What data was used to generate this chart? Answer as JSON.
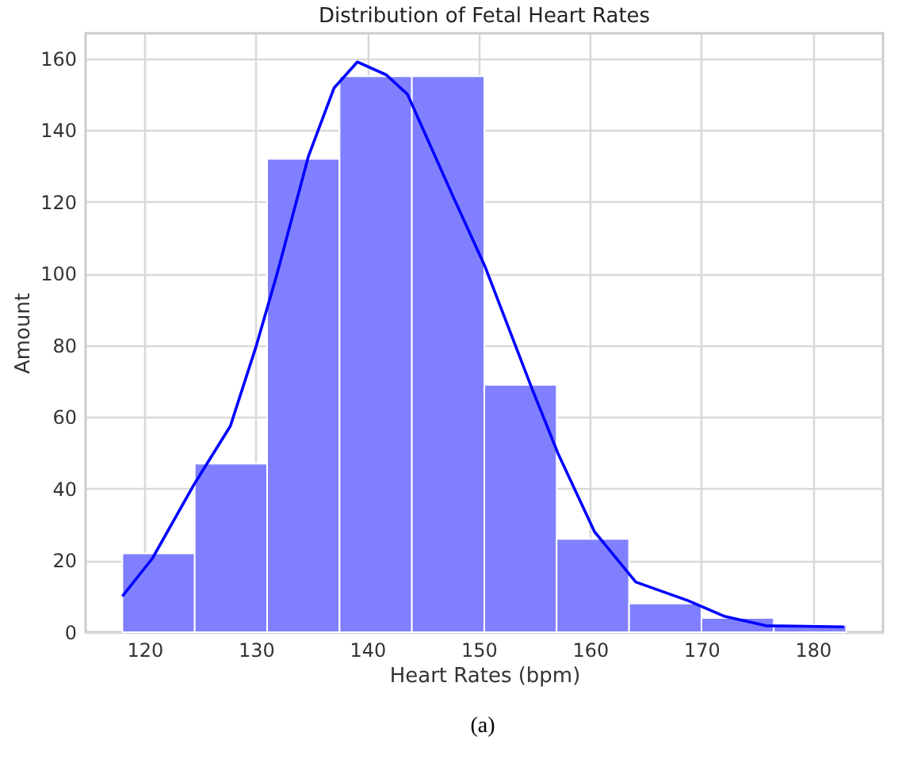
{
  "chart_data": {
    "type": "histogram",
    "title": "Distribution of Fetal Heart Rates",
    "xlabel": "Heart Rates (bpm)",
    "ylabel": "Amount",
    "bins": [
      118,
      124.5,
      131,
      137.5,
      144,
      150.5,
      157,
      163.5,
      170,
      176.5,
      183
    ],
    "values": [
      22,
      47,
      132,
      155,
      155,
      69,
      26,
      8,
      4,
      2
    ],
    "color": "#8080ff",
    "series": [
      {
        "type": "line",
        "color": "#0000ff",
        "x": [
          118,
          120.7,
          124.4,
          127.7,
          130,
          131.9,
          134.7,
          137,
          139.1,
          141.7,
          143.6,
          147.8,
          150.6,
          154.8,
          157.1,
          160.4,
          164.1,
          168.8,
          172.1,
          175.8,
          182.8
        ],
        "values": [
          10,
          20.6,
          41,
          57.5,
          79.6,
          100,
          132.6,
          151.7,
          159,
          155.4,
          150,
          120.8,
          101.7,
          67.8,
          50,
          28,
          14,
          8.8,
          4.4,
          1.8,
          1.5
        ]
      }
    ],
    "xlim": [
      114.7,
      186.3
    ],
    "xticks": [
      120,
      130,
      140,
      150,
      160,
      170,
      180
    ],
    "ylim": [
      0,
      167
    ],
    "yticks": [
      0,
      20,
      40,
      60,
      80,
      100,
      120,
      140,
      160
    ],
    "grid": true,
    "annotations": [
      "(a)"
    ]
  }
}
